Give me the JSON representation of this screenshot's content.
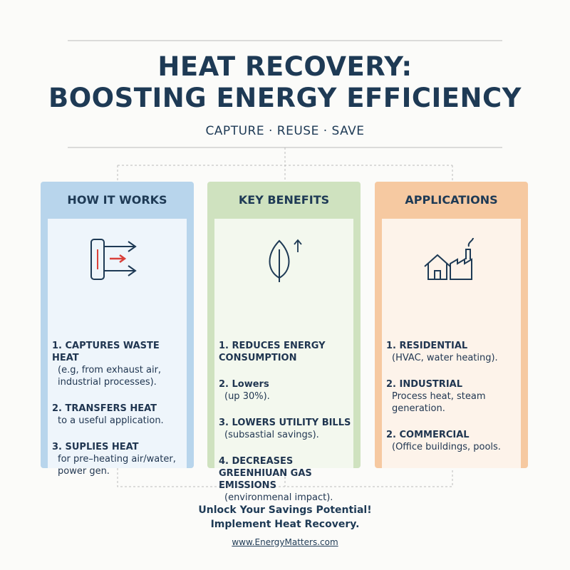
{
  "header": {
    "title_line1": "HEAT RECOVERY:",
    "title_line2": "BOOSTING ENERGY EFFICIENCY",
    "subtitle": "CAPTURE · REUSE · SAVE"
  },
  "columns": [
    {
      "heading": "HOW IT WORKS",
      "items": [
        {
          "label": "1. CAPTURES WASTE HEAT",
          "detail": "(e.g, from exhaust air, industrial processes)."
        },
        {
          "label": "2. TRANSFERS HEAT",
          "detail": "to a useful application."
        },
        {
          "label": "3. SUPLIES HEAT",
          "detail": "for pre–heating air/water, power gen."
        }
      ]
    },
    {
      "heading": "KEY BENEFITS",
      "items": [
        {
          "label": "1. REDUCES ENERGY CONSUMPTION",
          "detail": ""
        },
        {
          "label": "2. Lowers",
          "detail": "(up 30%)."
        },
        {
          "label": "3. LOWERS UTILITY BILLS",
          "detail": "(subsastial savings)."
        },
        {
          "label": "4. DECREASES GREENHIUAN GAS EMISSIONS",
          "detail": "(environmenal impact)."
        }
      ]
    },
    {
      "heading": "APPLICATIONS",
      "items": [
        {
          "label": "1. RESIDENTIAL",
          "detail": "(HVAC, water heating)."
        },
        {
          "label": "2. INDUSTRIAL",
          "detail": "Process heat, steam generation."
        },
        {
          "label": "2. COMMERCIAL",
          "detail": "(Office buildings, pools."
        }
      ]
    }
  ],
  "footer": {
    "line1": "Unlock Your Savings Potential!",
    "line2": "Implement Heat Recovery.",
    "link": "www.EnergyMatters.com"
  }
}
